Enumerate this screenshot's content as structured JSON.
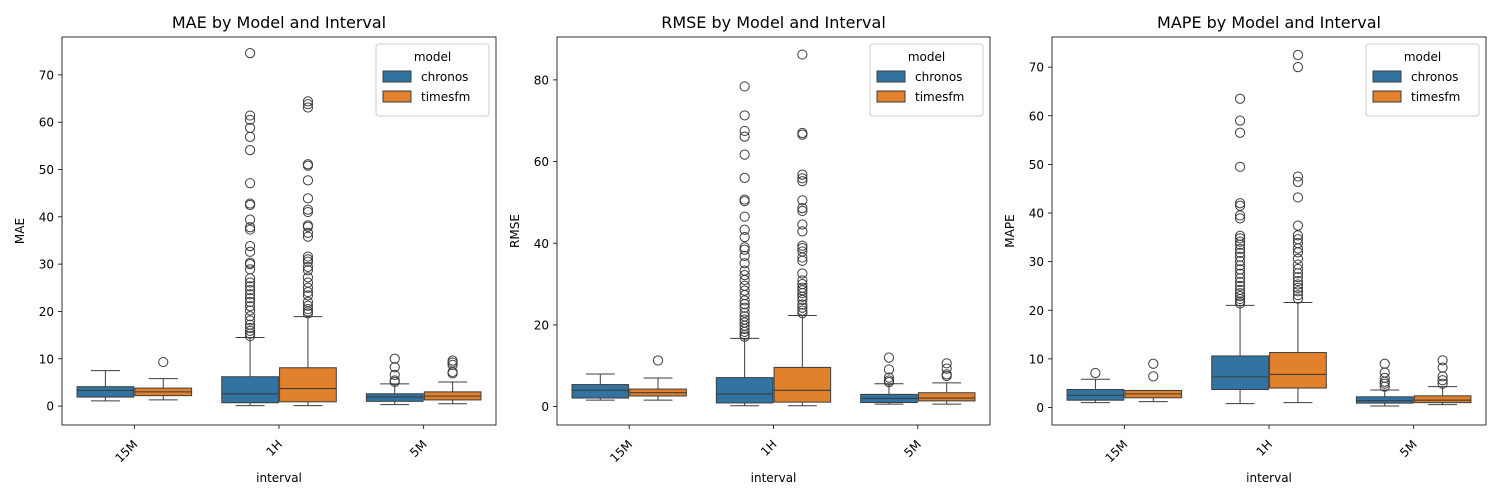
{
  "colors": {
    "chronos": "#3274a1",
    "timesfm": "#e1812c",
    "line": "#3d3d3d"
  },
  "chart_data": [
    {
      "type": "box",
      "title": "MAE by Model and Interval",
      "xlabel": "interval",
      "ylabel": "MAE",
      "categories": [
        "15M",
        "1H",
        "5M"
      ],
      "ylim": [
        -4,
        78
      ],
      "yticks": [
        0,
        10,
        20,
        30,
        40,
        50,
        60,
        70
      ],
      "grid": false,
      "legend": {
        "title": "model",
        "position": "upper-right",
        "entries": [
          "chronos",
          "timesfm"
        ]
      },
      "series": [
        {
          "name": "chronos",
          "boxes": [
            {
              "low": 1.1,
              "q1": 1.9,
              "median": 3.3,
              "q3": 4.1,
              "high": 7.5,
              "outliers": []
            },
            {
              "low": 0.1,
              "q1": 0.7,
              "median": 2.6,
              "q3": 6.2,
              "high": 14.5,
              "outliers": [
                14.8,
                15.3,
                15.9,
                16.5,
                17.2,
                18.1,
                19.0,
                20.2,
                21.1,
                22.0,
                22.8,
                23.6,
                24.5,
                25.3,
                26.1,
                27.0,
                28.9,
                30.0,
                30.3,
                32.6,
                33.8,
                37.3,
                37.8,
                39.4,
                42.5,
                42.8,
                47.1,
                54.1,
                56.9,
                58.8,
                60.5,
                61.4,
                74.6
              ]
            },
            {
              "low": 0.3,
              "q1": 1.0,
              "median": 1.9,
              "q3": 2.6,
              "high": 4.7,
              "outliers": [
                5.1,
                5.4,
                6.6,
                8.2,
                10.0
              ]
            }
          ]
        },
        {
          "name": "timesfm",
          "boxes": [
            {
              "low": 1.3,
              "q1": 2.2,
              "median": 3.0,
              "q3": 3.8,
              "high": 5.8,
              "outliers": [
                9.3
              ]
            },
            {
              "low": 0.1,
              "q1": 0.9,
              "median": 3.7,
              "q3": 8.1,
              "high": 18.9,
              "outliers": [
                19.6,
                20.0,
                20.5,
                21.2,
                22.0,
                23.4,
                24.1,
                25.0,
                26.1,
                27.2,
                28.7,
                29.4,
                30.5,
                31.0,
                31.6,
                35.8,
                36.6,
                37.9,
                38.2,
                41.0,
                41.5,
                43.9,
                47.7,
                50.8,
                51.1,
                63.1,
                63.8,
                64.4
              ]
            },
            {
              "low": 0.5,
              "q1": 1.3,
              "median": 2.1,
              "q3": 3.0,
              "high": 5.1,
              "outliers": [
                6.9,
                7.2,
                8.7,
                9.2,
                9.6
              ]
            }
          ]
        }
      ]
    },
    {
      "type": "box",
      "title": "RMSE by Model and Interval",
      "xlabel": "interval",
      "ylabel": "RMSE",
      "categories": [
        "15M",
        "1H",
        "5M"
      ],
      "ylim": [
        -4.5,
        90.5
      ],
      "yticks": [
        0,
        20,
        40,
        60,
        80
      ],
      "grid": false,
      "legend": {
        "title": "model",
        "position": "upper-right",
        "entries": [
          "chronos",
          "timesfm"
        ]
      },
      "series": [
        {
          "name": "chronos",
          "boxes": [
            {
              "low": 1.6,
              "q1": 2.1,
              "median": 4.0,
              "q3": 5.4,
              "high": 8.0,
              "outliers": []
            },
            {
              "low": 0.2,
              "q1": 0.9,
              "median": 3.1,
              "q3": 7.1,
              "high": 16.7,
              "outliers": [
                17.1,
                17.6,
                18.3,
                19.0,
                19.8,
                20.6,
                21.3,
                22.1,
                23.0,
                24.2,
                25.1,
                26.0,
                27.3,
                28.4,
                29.6,
                31.0,
                32.2,
                33.3,
                35.1,
                36.9,
                38.4,
                39.0,
                41.5,
                43.3,
                46.5,
                50.3,
                50.7,
                56.0,
                61.7,
                66.1,
                67.5,
                71.3,
                78.4
              ]
            },
            {
              "low": 0.6,
              "q1": 1.0,
              "median": 2.0,
              "q3": 3.0,
              "high": 5.6,
              "outliers": [
                6.0,
                6.4,
                7.1,
                9.1,
                12.0
              ]
            }
          ]
        },
        {
          "name": "timesfm",
          "boxes": [
            {
              "low": 1.6,
              "q1": 2.6,
              "median": 3.4,
              "q3": 4.3,
              "high": 7.0,
              "outliers": [
                11.3
              ]
            },
            {
              "low": 0.2,
              "q1": 1.1,
              "median": 4.0,
              "q3": 9.6,
              "high": 22.3,
              "outliers": [
                22.9,
                23.5,
                24.2,
                25.0,
                26.1,
                26.9,
                27.8,
                28.5,
                29.1,
                30.0,
                30.9,
                32.6,
                35.7,
                36.5,
                38.0,
                38.8,
                39.4,
                42.9,
                44.6,
                47.9,
                48.6,
                50.5,
                55.2,
                55.9,
                56.8,
                66.6,
                67.0,
                86.2
              ]
            },
            {
              "low": 0.6,
              "q1": 1.4,
              "median": 2.1,
              "q3": 3.4,
              "high": 5.8,
              "outliers": [
                7.5,
                7.9,
                9.3,
                10.6
              ]
            }
          ]
        }
      ]
    },
    {
      "type": "box",
      "title": "MAPE by Model and Interval",
      "xlabel": "interval",
      "ylabel": "MAPE",
      "categories": [
        "15M",
        "1H",
        "5M"
      ],
      "ylim": [
        -3.6,
        76.2
      ],
      "yticks": [
        0,
        10,
        20,
        30,
        40,
        50,
        60,
        70
      ],
      "grid": false,
      "legend": {
        "title": "model",
        "position": "upper-right",
        "entries": [
          "chronos",
          "timesfm"
        ]
      },
      "series": [
        {
          "name": "chronos",
          "boxes": [
            {
              "low": 1.0,
              "q1": 1.5,
              "median": 2.5,
              "q3": 3.7,
              "high": 5.8,
              "outliers": [
                7.1
              ]
            },
            {
              "low": 0.8,
              "q1": 3.7,
              "median": 6.3,
              "q3": 10.6,
              "high": 21.0,
              "outliers": [
                21.4,
                21.8,
                22.3,
                22.9,
                23.5,
                24.2,
                25.0,
                25.8,
                26.6,
                27.5,
                28.4,
                29.2,
                30.1,
                31.0,
                31.8,
                32.6,
                33.5,
                34.1,
                34.8,
                35.3,
                38.9,
                39.5,
                41.5,
                42.0,
                49.5,
                56.5,
                59.0,
                63.5
              ]
            },
            {
              "low": 0.3,
              "q1": 0.9,
              "median": 1.4,
              "q3": 2.2,
              "high": 3.6,
              "outliers": [
                4.3,
                4.9,
                5.3,
                6.1,
                7.2,
                9.0
              ]
            }
          ]
        },
        {
          "name": "timesfm",
          "boxes": [
            {
              "low": 1.2,
              "q1": 2.0,
              "median": 2.8,
              "q3": 3.5,
              "high": 3.5,
              "outliers": [
                6.4,
                9.0
              ]
            },
            {
              "low": 1.0,
              "q1": 4.0,
              "median": 6.8,
              "q3": 11.3,
              "high": 21.6,
              "outliers": [
                22.4,
                23.1,
                23.9,
                24.6,
                25.3,
                26.0,
                26.8,
                27.6,
                28.5,
                29.4,
                30.6,
                31.9,
                32.7,
                33.8,
                34.6,
                35.4,
                37.4,
                43.2,
                46.4,
                47.5,
                70.0,
                72.5
              ]
            },
            {
              "low": 0.6,
              "q1": 1.0,
              "median": 1.5,
              "q3": 2.4,
              "high": 4.3,
              "outliers": [
                4.9,
                5.6,
                6.4,
                8.2,
                9.7
              ]
            }
          ]
        }
      ]
    }
  ]
}
